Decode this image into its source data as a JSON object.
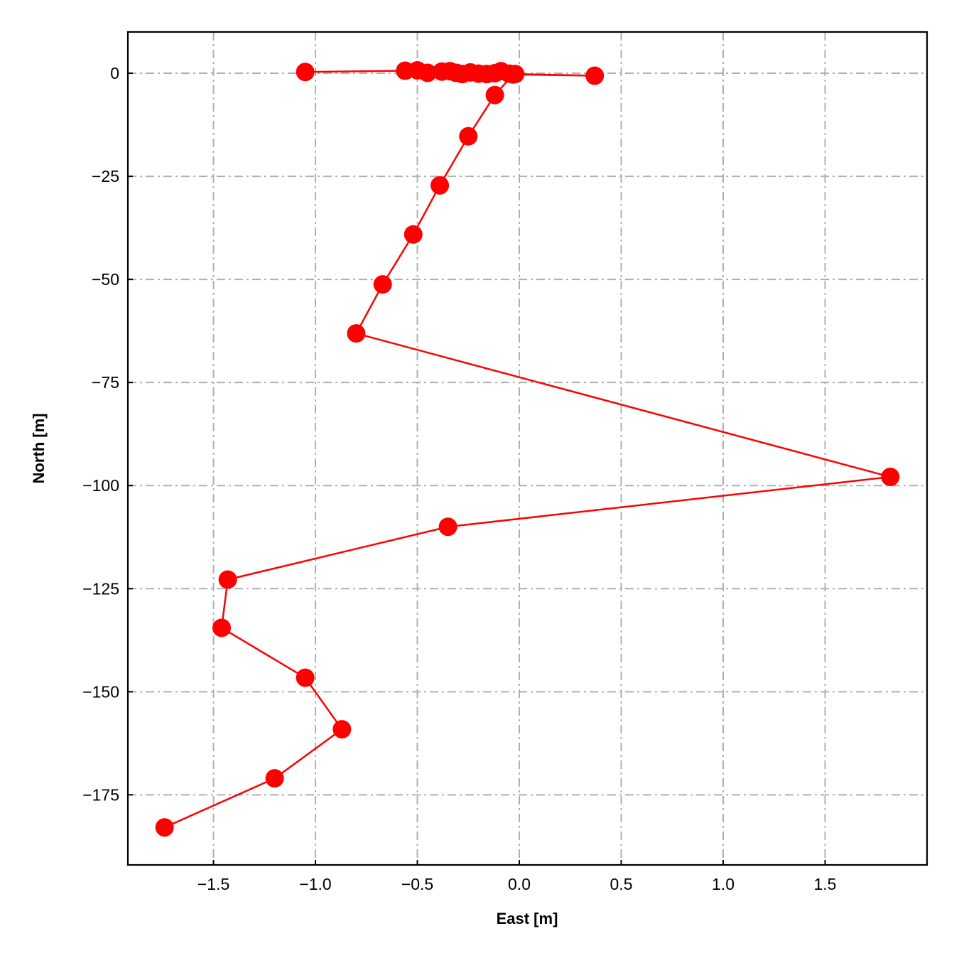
{
  "chart_data": {
    "type": "line",
    "title": "",
    "xlabel": "East [m]",
    "ylabel": "North [m]",
    "xlim": [
      -1.92,
      2.0
    ],
    "ylim": [
      -192,
      10
    ],
    "grid": true,
    "marker": "circle",
    "series_color": "#ff0000",
    "grid_color": "#b0b0b0",
    "xticks": [
      -1.5,
      -1.0,
      -0.5,
      0.0,
      0.5,
      1.0,
      1.5
    ],
    "xtick_labels": [
      "−1.5",
      "−1.0",
      "−0.5",
      "0.0",
      "0.5",
      "1.0",
      "1.5"
    ],
    "yticks": [
      0,
      -25,
      -50,
      -75,
      -100,
      -125,
      -150,
      -175
    ],
    "ytick_labels": [
      "0",
      "−25",
      "−50",
      "−75",
      "−100",
      "−125",
      "−150",
      "−175"
    ],
    "points": [
      [
        -1.05,
        0.3
      ],
      [
        -0.56,
        0.6
      ],
      [
        -0.5,
        0.7
      ],
      [
        -0.45,
        0.1
      ],
      [
        -0.38,
        0.4
      ],
      [
        -0.34,
        0.5
      ],
      [
        -0.31,
        0.1
      ],
      [
        -0.28,
        -0.2
      ],
      [
        -0.24,
        0.2
      ],
      [
        -0.2,
        -0.1
      ],
      [
        -0.16,
        -0.2
      ],
      [
        -0.12,
        0.0
      ],
      [
        -0.09,
        0.5
      ],
      [
        -0.05,
        -0.1
      ],
      [
        -0.02,
        -0.2
      ],
      [
        0.37,
        -0.6
      ],
      [
        -0.03,
        -0.3
      ],
      [
        -0.12,
        -5.3
      ],
      [
        -0.25,
        -15.3
      ],
      [
        -0.39,
        -27.2
      ],
      [
        -0.52,
        -39.1
      ],
      [
        -0.67,
        -51.2
      ],
      [
        -0.8,
        -63.1
      ],
      [
        1.82,
        -97.9
      ],
      [
        -0.35,
        -110.0
      ],
      [
        -1.43,
        -122.8
      ],
      [
        -1.46,
        -134.5
      ],
      [
        -1.05,
        -146.6
      ],
      [
        -0.87,
        -159.1
      ],
      [
        -1.2,
        -171.0
      ],
      [
        -1.74,
        -182.9
      ]
    ]
  }
}
